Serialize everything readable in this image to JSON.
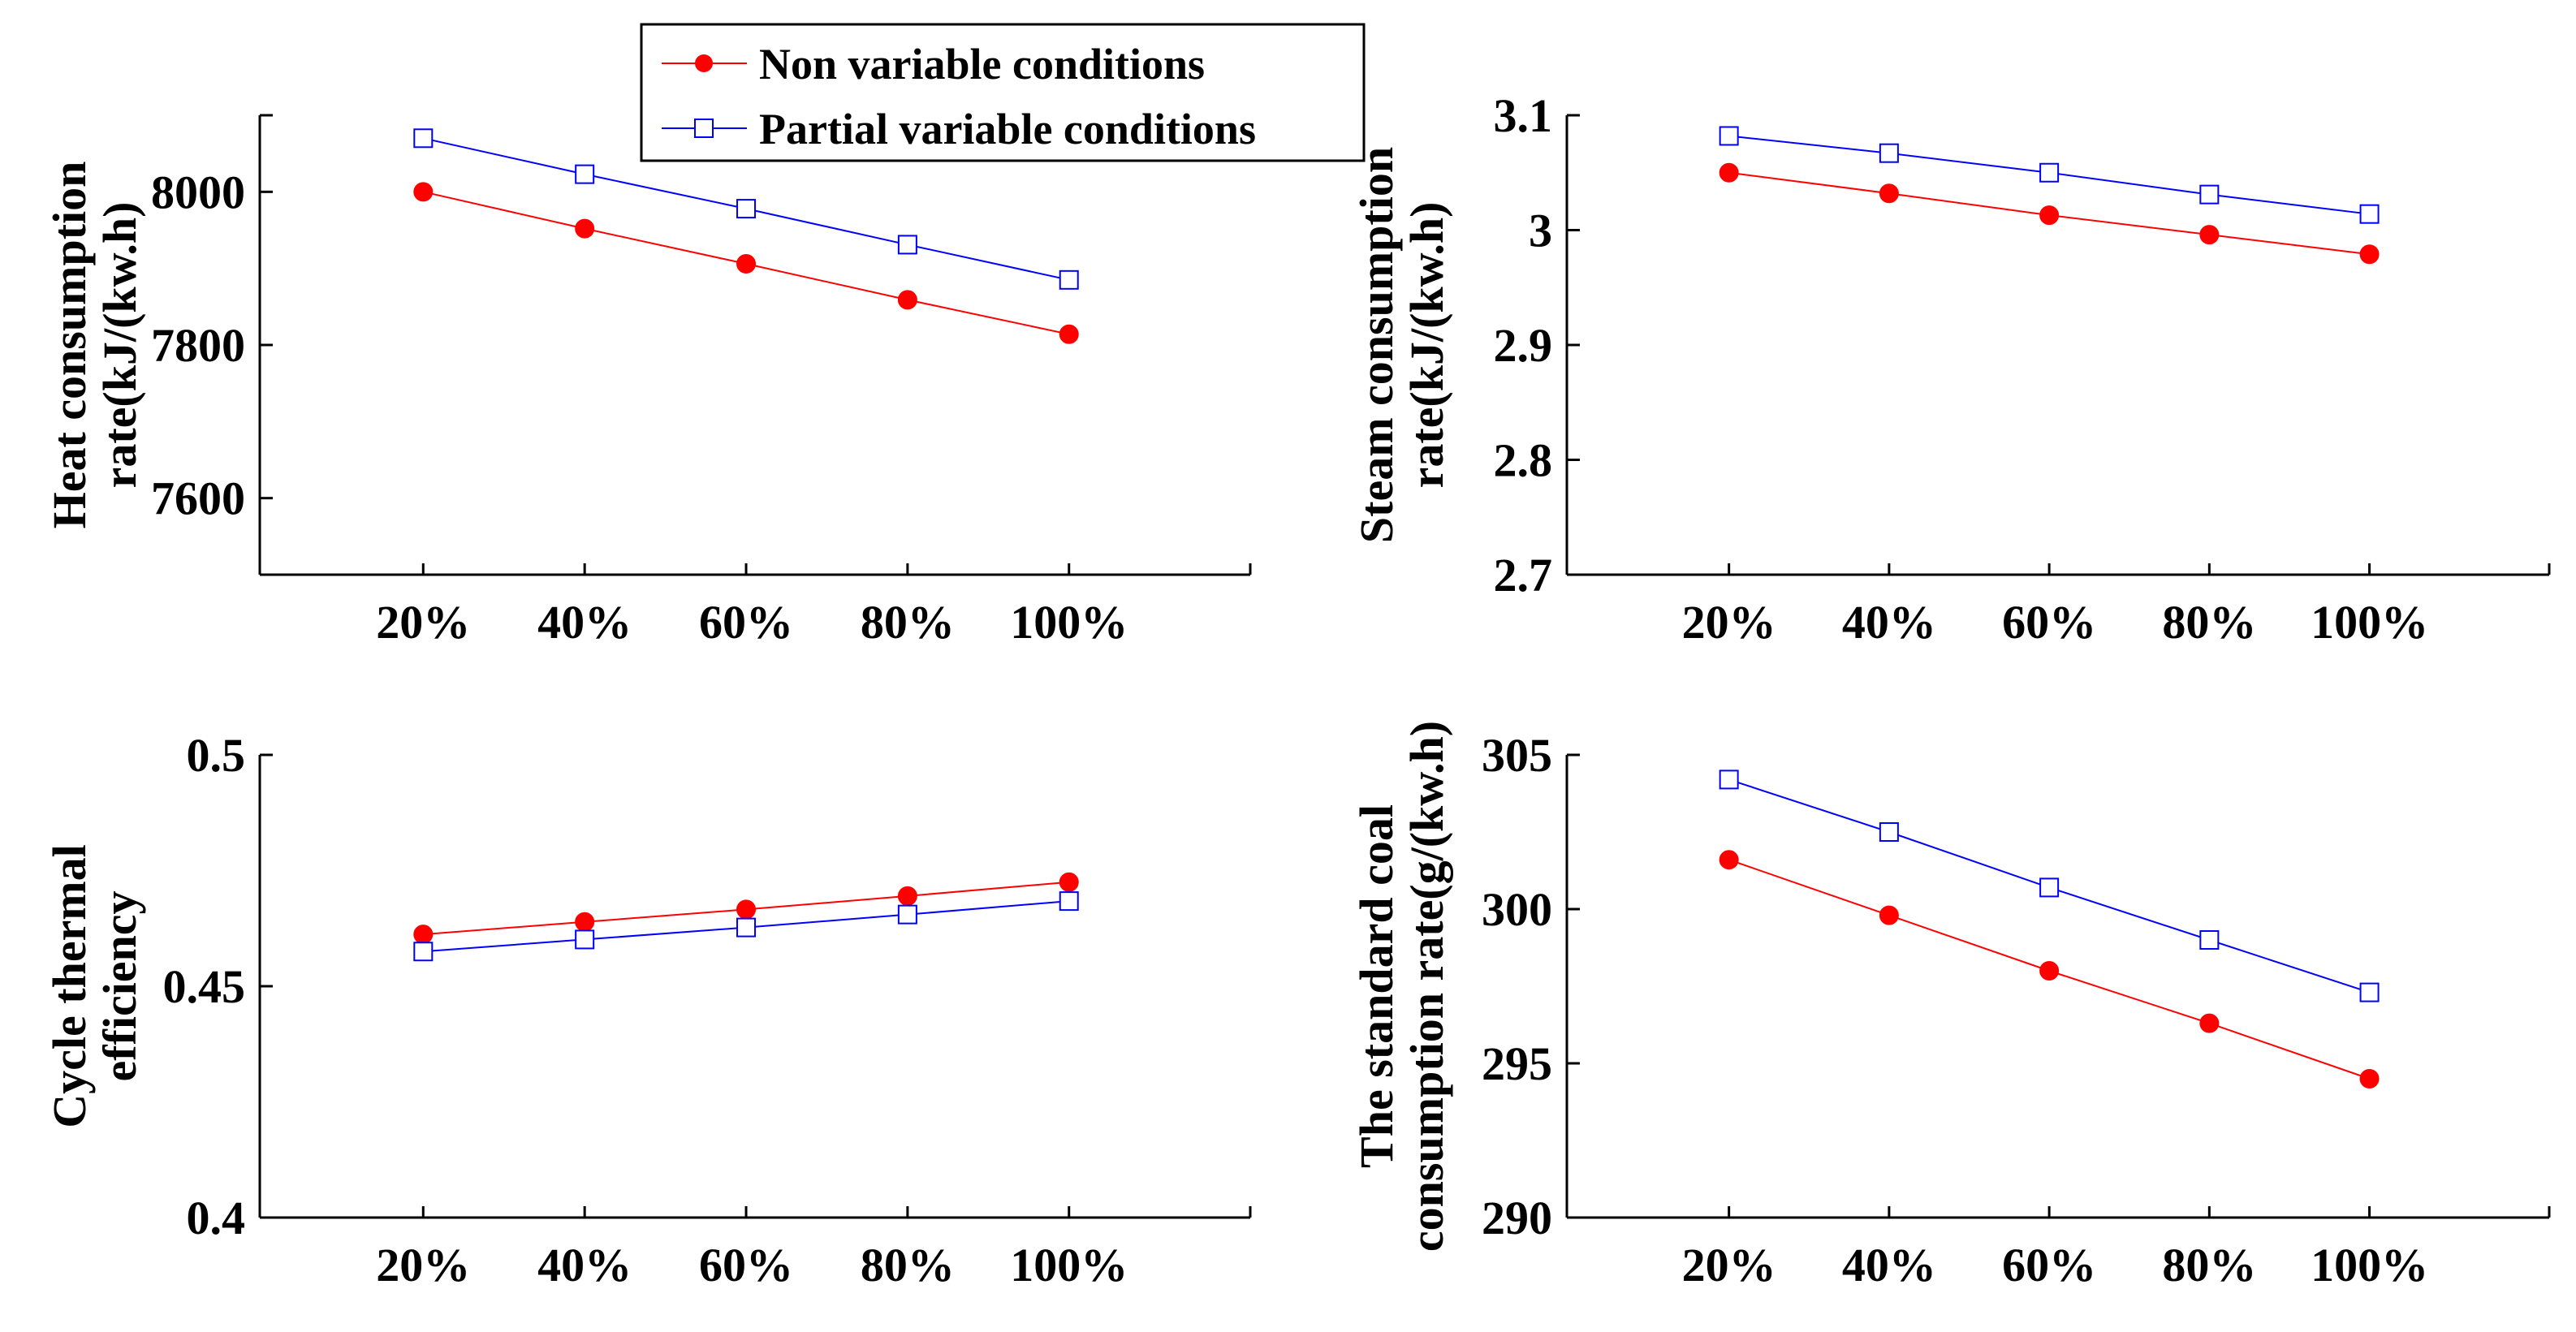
{
  "legend": {
    "position": "top-center",
    "entries": [
      {
        "name": "Non variable conditions",
        "marker": "filled-circle",
        "color": "#ff0000"
      },
      {
        "name": "Partial variable conditions",
        "marker": "open-square",
        "color": "#0000ff"
      }
    ]
  },
  "chart_data": [
    {
      "type": "line",
      "ylabel_lines": [
        "Heat consumption",
        "rate(kJ/(kw.h)"
      ],
      "categories": [
        "20%",
        "40%",
        "60%",
        "80%",
        "100%"
      ],
      "ylim": [
        7500,
        8100
      ],
      "yticks": [
        7600,
        7800,
        8000
      ],
      "ytick_labels": [
        "7600",
        "7800",
        "8000"
      ],
      "series": [
        {
          "name": "Non variable conditions",
          "color": "#ff0000",
          "marker": "filled-circle",
          "values": [
            8000,
            7952,
            7906,
            7859,
            7814
          ]
        },
        {
          "name": "Partial variable conditions",
          "color": "#0000ff",
          "marker": "open-square",
          "values": [
            8070,
            8023,
            7978,
            7931,
            7885
          ]
        }
      ]
    },
    {
      "type": "line",
      "ylabel_lines": [
        "Steam consumption",
        "rate(kJ/(kw.h)"
      ],
      "categories": [
        "20%",
        "40%",
        "60%",
        "80%",
        "100%"
      ],
      "ylim": [
        2.7,
        3.1
      ],
      "yticks": [
        2.7,
        2.8,
        2.9,
        3.0,
        3.1
      ],
      "ytick_labels": [
        "2.7",
        "2.8",
        "2.9",
        "3",
        "3.1"
      ],
      "series": [
        {
          "name": "Non variable conditions",
          "color": "#ff0000",
          "marker": "filled-circle",
          "values": [
            3.05,
            3.032,
            3.013,
            2.996,
            2.979
          ]
        },
        {
          "name": "Partial variable conditions",
          "color": "#0000ff",
          "marker": "open-square",
          "values": [
            3.082,
            3.067,
            3.05,
            3.031,
            3.014
          ]
        }
      ]
    },
    {
      "type": "line",
      "ylabel_lines": [
        "Cycle thermal",
        "efficiency"
      ],
      "categories": [
        "20%",
        "40%",
        "60%",
        "80%",
        "100%"
      ],
      "ylim": [
        0.4,
        0.5
      ],
      "yticks": [
        0.4,
        0.45,
        0.5
      ],
      "ytick_labels": [
        "0.4",
        "0.45",
        "0.5"
      ],
      "series": [
        {
          "name": "Non variable conditions",
          "color": "#ff0000",
          "marker": "filled-circle",
          "values": [
            0.4612,
            0.4639,
            0.4666,
            0.4695,
            0.4725
          ]
        },
        {
          "name": "Partial variable conditions",
          "color": "#0000ff",
          "marker": "open-square",
          "values": [
            0.4575,
            0.4601,
            0.4627,
            0.4655,
            0.4684
          ]
        }
      ]
    },
    {
      "type": "line",
      "ylabel_lines": [
        "The standard coal",
        "consumption rate(g/(kw.h)"
      ],
      "categories": [
        "20%",
        "40%",
        "60%",
        "80%",
        "100%"
      ],
      "ylim": [
        290,
        305
      ],
      "yticks": [
        290,
        295,
        300,
        305
      ],
      "ytick_labels": [
        "290",
        "295",
        "300",
        "305"
      ],
      "series": [
        {
          "name": "Non variable conditions",
          "color": "#ff0000",
          "marker": "filled-circle",
          "values": [
            301.6,
            299.8,
            298.0,
            296.3,
            294.5
          ]
        },
        {
          "name": "Partial variable conditions",
          "color": "#0000ff",
          "marker": "open-square",
          "values": [
            304.2,
            302.5,
            300.7,
            299.0,
            297.3
          ]
        }
      ]
    }
  ]
}
